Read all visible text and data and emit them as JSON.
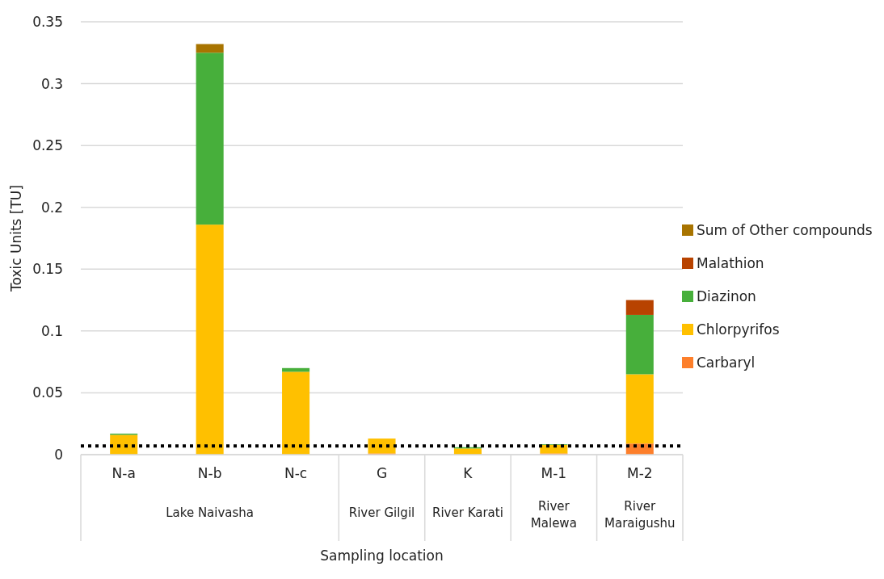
{
  "chart_data": {
    "type": "bar",
    "stacked": true,
    "xlabel": "Sampling location",
    "ylabel": "Toxic Units [TU]",
    "categories": [
      "N-a",
      "N-b",
      "N-c",
      "G",
      "K",
      "M-1",
      "M-2"
    ],
    "series": [
      {
        "name": "Carbaryl",
        "color": "#fd7f2b",
        "values": [
          null,
          null,
          null,
          0.001,
          null,
          0.001,
          0.009
        ]
      },
      {
        "name": "Chlorpyrifos",
        "color": "#ffc000",
        "values": [
          0.016,
          0.186,
          0.067,
          0.012,
          0.005,
          0.007,
          0.056
        ]
      },
      {
        "name": "Diazinon",
        "color": "#47af3b",
        "values": [
          0.001,
          0.139,
          0.003,
          null,
          0.001,
          0.0005,
          0.048
        ]
      },
      {
        "name": "Malathion",
        "color": "#b84300",
        "values": [
          null,
          null,
          null,
          null,
          null,
          null,
          0.012
        ]
      },
      {
        "name": "Sum of Other compounds",
        "color": "#a87400",
        "values": [
          null,
          0.007,
          null,
          null,
          null,
          null,
          null
        ]
      }
    ],
    "ylim": [
      0,
      0.35
    ],
    "yticks": [
      0,
      0.05,
      0.1,
      0.15,
      0.2,
      0.25,
      0.3,
      0.35
    ],
    "grid": "y",
    "legend": "right",
    "ref_lines": [
      {
        "axis": "y",
        "value": 0.007,
        "color": "#000000",
        "line_style": "dotted"
      }
    ],
    "annotations": [
      "Lake Naivasha",
      "River Gilgil",
      "River Karati",
      "River Malewa",
      "River Maraigushu"
    ]
  }
}
